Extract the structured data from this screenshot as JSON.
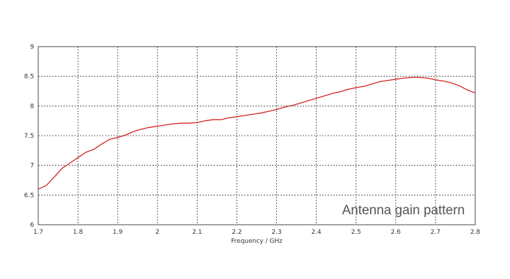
{
  "chart_data": {
    "type": "line",
    "title": "",
    "xlabel": "Frequency / GHz",
    "ylabel": "",
    "xlim": [
      1.7,
      2.8
    ],
    "ylim": [
      6,
      9
    ],
    "xticks": [
      "1.7",
      "1.8",
      "1.9",
      "2",
      "2.1",
      "2.2",
      "2.3",
      "2.4",
      "2.5",
      "2.6",
      "2.7",
      "2.8"
    ],
    "yticks": [
      "6",
      "6.5",
      "7",
      "7.5",
      "8",
      "8.5",
      "9"
    ],
    "grid": true,
    "annotation": "Antenna gain pattern",
    "series": [
      {
        "color": "#d42020",
        "x": [
          1.7,
          1.72,
          1.74,
          1.76,
          1.78,
          1.8,
          1.82,
          1.84,
          1.86,
          1.88,
          1.9,
          1.92,
          1.94,
          1.96,
          1.98,
          2.0,
          2.02,
          2.04,
          2.06,
          2.08,
          2.1,
          2.12,
          2.14,
          2.16,
          2.18,
          2.2,
          2.22,
          2.24,
          2.26,
          2.28,
          2.3,
          2.32,
          2.34,
          2.36,
          2.38,
          2.4,
          2.42,
          2.44,
          2.46,
          2.48,
          2.5,
          2.52,
          2.54,
          2.56,
          2.58,
          2.6,
          2.62,
          2.64,
          2.66,
          2.68,
          2.7,
          2.72,
          2.74,
          2.76,
          2.78,
          2.8
        ],
        "y": [
          6.6,
          6.66,
          6.8,
          6.95,
          7.04,
          7.13,
          7.22,
          7.27,
          7.36,
          7.44,
          7.47,
          7.51,
          7.57,
          7.61,
          7.64,
          7.66,
          7.68,
          7.7,
          7.71,
          7.71,
          7.72,
          7.75,
          7.77,
          7.77,
          7.8,
          7.82,
          7.84,
          7.86,
          7.88,
          7.91,
          7.94,
          7.98,
          8.01,
          8.05,
          8.09,
          8.13,
          8.17,
          8.21,
          8.24,
          8.28,
          8.31,
          8.33,
          8.37,
          8.41,
          8.43,
          8.45,
          8.47,
          8.48,
          8.48,
          8.47,
          8.44,
          8.42,
          8.39,
          8.34,
          8.27,
          8.22
        ]
      }
    ]
  }
}
